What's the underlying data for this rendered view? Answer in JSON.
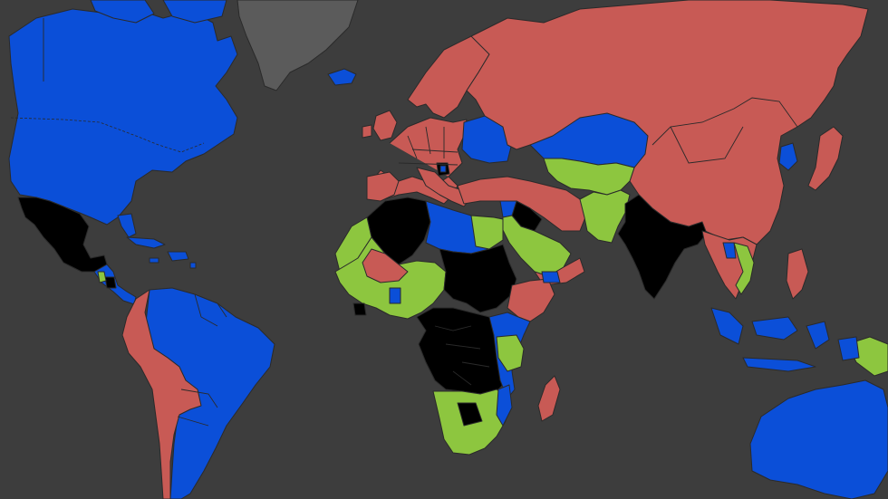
{
  "map": {
    "colors": {
      "ocean": "#3d3d3d",
      "blue": "#0b4fd8",
      "red": "#c85a55",
      "green": "#8dc63f",
      "black": "#000000",
      "gray": "#5b5b5b",
      "border": "#2a2a2a"
    },
    "regions": [
      {
        "id": "north-america",
        "category": "blue"
      },
      {
        "id": "greenland",
        "category": "gray"
      },
      {
        "id": "iceland",
        "category": "blue"
      },
      {
        "id": "mexico",
        "category": "black"
      },
      {
        "id": "central-america",
        "category": "blue"
      },
      {
        "id": "caribbean",
        "category": "blue"
      },
      {
        "id": "south-america-east",
        "category": "blue"
      },
      {
        "id": "south-america-west",
        "category": "red"
      },
      {
        "id": "europe",
        "category": "red"
      },
      {
        "id": "eastern-europe",
        "category": "blue"
      },
      {
        "id": "russia-china",
        "category": "red"
      },
      {
        "id": "kazakhstan",
        "category": "blue"
      },
      {
        "id": "central-asia",
        "category": "green"
      },
      {
        "id": "middle-east-red",
        "category": "red"
      },
      {
        "id": "iraq",
        "category": "black"
      },
      {
        "id": "saudi-arabia",
        "category": "green"
      },
      {
        "id": "afghanistan-pakistan",
        "category": "green"
      },
      {
        "id": "india",
        "category": "black"
      },
      {
        "id": "southeast-asia",
        "category": "red"
      },
      {
        "id": "southeast-asia-green",
        "category": "green"
      },
      {
        "id": "japan",
        "category": "red"
      },
      {
        "id": "indonesia",
        "category": "blue"
      },
      {
        "id": "papua",
        "category": "green"
      },
      {
        "id": "australia",
        "category": "blue"
      },
      {
        "id": "north-africa-black",
        "category": "black"
      },
      {
        "id": "libya-egypt",
        "category": "blue"
      },
      {
        "id": "west-africa",
        "category": "green"
      },
      {
        "id": "mali",
        "category": "red"
      },
      {
        "id": "sudan-chad",
        "category": "black"
      },
      {
        "id": "horn-of-africa",
        "category": "red"
      },
      {
        "id": "east-africa",
        "category": "blue"
      },
      {
        "id": "central-africa",
        "category": "black"
      },
      {
        "id": "southern-africa",
        "category": "green"
      },
      {
        "id": "madagascar",
        "category": "red"
      }
    ]
  }
}
